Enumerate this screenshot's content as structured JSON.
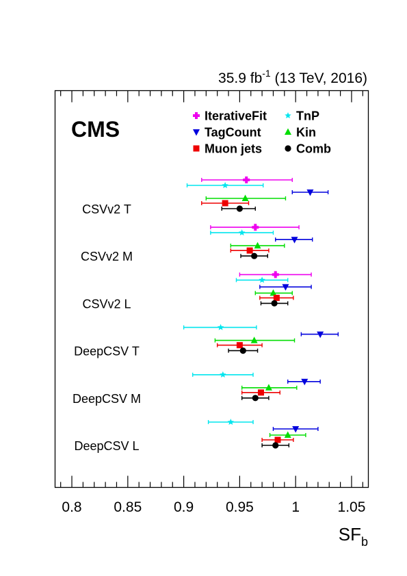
{
  "chart_data": {
    "type": "scatter",
    "subtype": "horizontal-errorbar",
    "title": "",
    "lumi_label": {
      "main": "35.9 fb",
      "sup": "-1",
      "tail": " (13 TeV, 2016)"
    },
    "experiment_label": "CMS",
    "xlabel": {
      "main": "SF",
      "sub": "b"
    },
    "ylabel": "",
    "xlim": [
      0.785,
      1.065
    ],
    "xticks": [
      0.8,
      0.85,
      0.9,
      0.95,
      1.0,
      1.05
    ],
    "xtick_labels": [
      "0.8",
      "0.85",
      "0.9",
      "0.95",
      "1",
      "1.05"
    ],
    "grid": false,
    "legend_position": "top-right",
    "categories": [
      "CSVv2 T",
      "CSVv2 M",
      "CSVv2 L",
      "DeepCSV T",
      "DeepCSV M",
      "DeepCSV L"
    ],
    "series": [
      {
        "name": "IterativeFit",
        "color": "#ee00ee",
        "marker": "cross",
        "points": [
          {
            "category": "CSVv2 T",
            "x": 0.956,
            "xerr": [
              0.916,
              0.997
            ]
          },
          {
            "category": "CSVv2 M",
            "x": 0.964,
            "xerr": [
              0.924,
              1.003
            ]
          },
          {
            "category": "CSVv2 L",
            "x": 0.982,
            "xerr": [
              0.95,
              1.014
            ]
          }
        ]
      },
      {
        "name": "TnP",
        "color": "#00e5ee",
        "marker": "star",
        "points": [
          {
            "category": "CSVv2 T",
            "x": 0.937,
            "xerr": [
              0.903,
              0.971
            ]
          },
          {
            "category": "CSVv2 M",
            "x": 0.952,
            "xerr": [
              0.924,
              0.98
            ]
          },
          {
            "category": "CSVv2 L",
            "x": 0.97,
            "xerr": [
              0.947,
              0.993
            ]
          },
          {
            "category": "DeepCSV T",
            "x": 0.933,
            "xerr": [
              0.9,
              0.965
            ]
          },
          {
            "category": "DeepCSV M",
            "x": 0.935,
            "xerr": [
              0.908,
              0.962
            ]
          },
          {
            "category": "DeepCSV L",
            "x": 0.942,
            "xerr": [
              0.922,
              0.962
            ]
          }
        ]
      },
      {
        "name": "TagCount",
        "color": "#0000dd",
        "marker": "triangle-down",
        "points": [
          {
            "category": "CSVv2 T",
            "x": 1.013,
            "xerr": [
              0.997,
              1.029
            ]
          },
          {
            "category": "CSVv2 M",
            "x": 0.999,
            "xerr": [
              0.982,
              1.015
            ]
          },
          {
            "category": "CSVv2 L",
            "x": 0.991,
            "xerr": [
              0.968,
              1.014
            ]
          },
          {
            "category": "DeepCSV T",
            "x": 1.022,
            "xerr": [
              1.005,
              1.038
            ]
          },
          {
            "category": "DeepCSV M",
            "x": 1.008,
            "xerr": [
              0.993,
              1.022
            ]
          },
          {
            "category": "DeepCSV L",
            "x": 1.0,
            "xerr": [
              0.98,
              1.02
            ]
          }
        ]
      },
      {
        "name": "Kin",
        "color": "#00dd00",
        "marker": "triangle-up",
        "points": [
          {
            "category": "CSVv2 T",
            "x": 0.955,
            "xerr": [
              0.92,
              0.991
            ]
          },
          {
            "category": "CSVv2 M",
            "x": 0.966,
            "xerr": [
              0.942,
              0.99
            ]
          },
          {
            "category": "CSVv2 L",
            "x": 0.98,
            "xerr": [
              0.964,
              0.997
            ]
          },
          {
            "category": "DeepCSV T",
            "x": 0.963,
            "xerr": [
              0.928,
              0.999
            ]
          },
          {
            "category": "DeepCSV M",
            "x": 0.976,
            "xerr": [
              0.952,
              1.001
            ]
          },
          {
            "category": "DeepCSV L",
            "x": 0.993,
            "xerr": [
              0.977,
              1.009
            ]
          }
        ]
      },
      {
        "name": "Muon jets",
        "color": "#ee0000",
        "marker": "square",
        "points": [
          {
            "category": "CSVv2 T",
            "x": 0.937,
            "xerr": [
              0.916,
              0.958
            ]
          },
          {
            "category": "CSVv2 M",
            "x": 0.959,
            "xerr": [
              0.942,
              0.976
            ]
          },
          {
            "category": "CSVv2 L",
            "x": 0.983,
            "xerr": [
              0.968,
              0.998
            ]
          },
          {
            "category": "DeepCSV T",
            "x": 0.95,
            "xerr": [
              0.93,
              0.97
            ]
          },
          {
            "category": "DeepCSV M",
            "x": 0.969,
            "xerr": [
              0.952,
              0.986
            ]
          },
          {
            "category": "DeepCSV L",
            "x": 0.984,
            "xerr": [
              0.97,
              0.998
            ]
          }
        ]
      },
      {
        "name": "Comb",
        "color": "#000000",
        "marker": "circle",
        "points": [
          {
            "category": "CSVv2 T",
            "x": 0.95,
            "xerr": [
              0.934,
              0.964
            ]
          },
          {
            "category": "CSVv2 M",
            "x": 0.963,
            "xerr": [
              0.951,
              0.975
            ]
          },
          {
            "category": "CSVv2 L",
            "x": 0.981,
            "xerr": [
              0.969,
              0.993
            ]
          },
          {
            "category": "DeepCSV T",
            "x": 0.953,
            "xerr": [
              0.94,
              0.966
            ]
          },
          {
            "category": "DeepCSV M",
            "x": 0.964,
            "xerr": [
              0.952,
              0.976
            ]
          },
          {
            "category": "DeepCSV L",
            "x": 0.982,
            "xerr": [
              0.97,
              0.994
            ]
          }
        ]
      }
    ]
  }
}
